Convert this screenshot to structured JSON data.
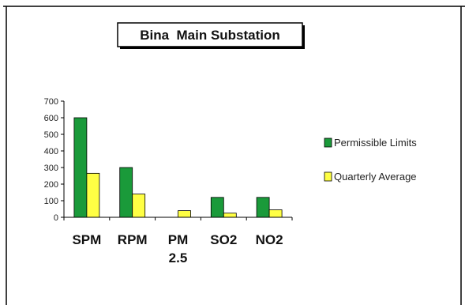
{
  "chart_data": {
    "type": "bar",
    "title": "Bina  Main Substation",
    "categories": [
      "SPM",
      "RPM",
      "PM 2.5",
      "SO2",
      "NO2"
    ],
    "category_lines": [
      [
        "SPM"
      ],
      [
        "RPM"
      ],
      [
        "PM",
        "2.5"
      ],
      [
        "SO2"
      ],
      [
        "NO2"
      ]
    ],
    "series": [
      {
        "name": "Permissible Limits",
        "values": [
          600,
          300,
          null,
          120,
          120
        ],
        "color": "#1a9a3a"
      },
      {
        "name": "Quarterly Average",
        "values": [
          265,
          140,
          40,
          25,
          45
        ],
        "color": "#ffff44"
      }
    ],
    "ylim": [
      0,
      700
    ],
    "yticks": [
      0,
      100,
      200,
      300,
      400,
      500,
      600,
      700
    ],
    "xlabel": "",
    "ylabel": "",
    "grid": false,
    "legend_position": "right"
  }
}
